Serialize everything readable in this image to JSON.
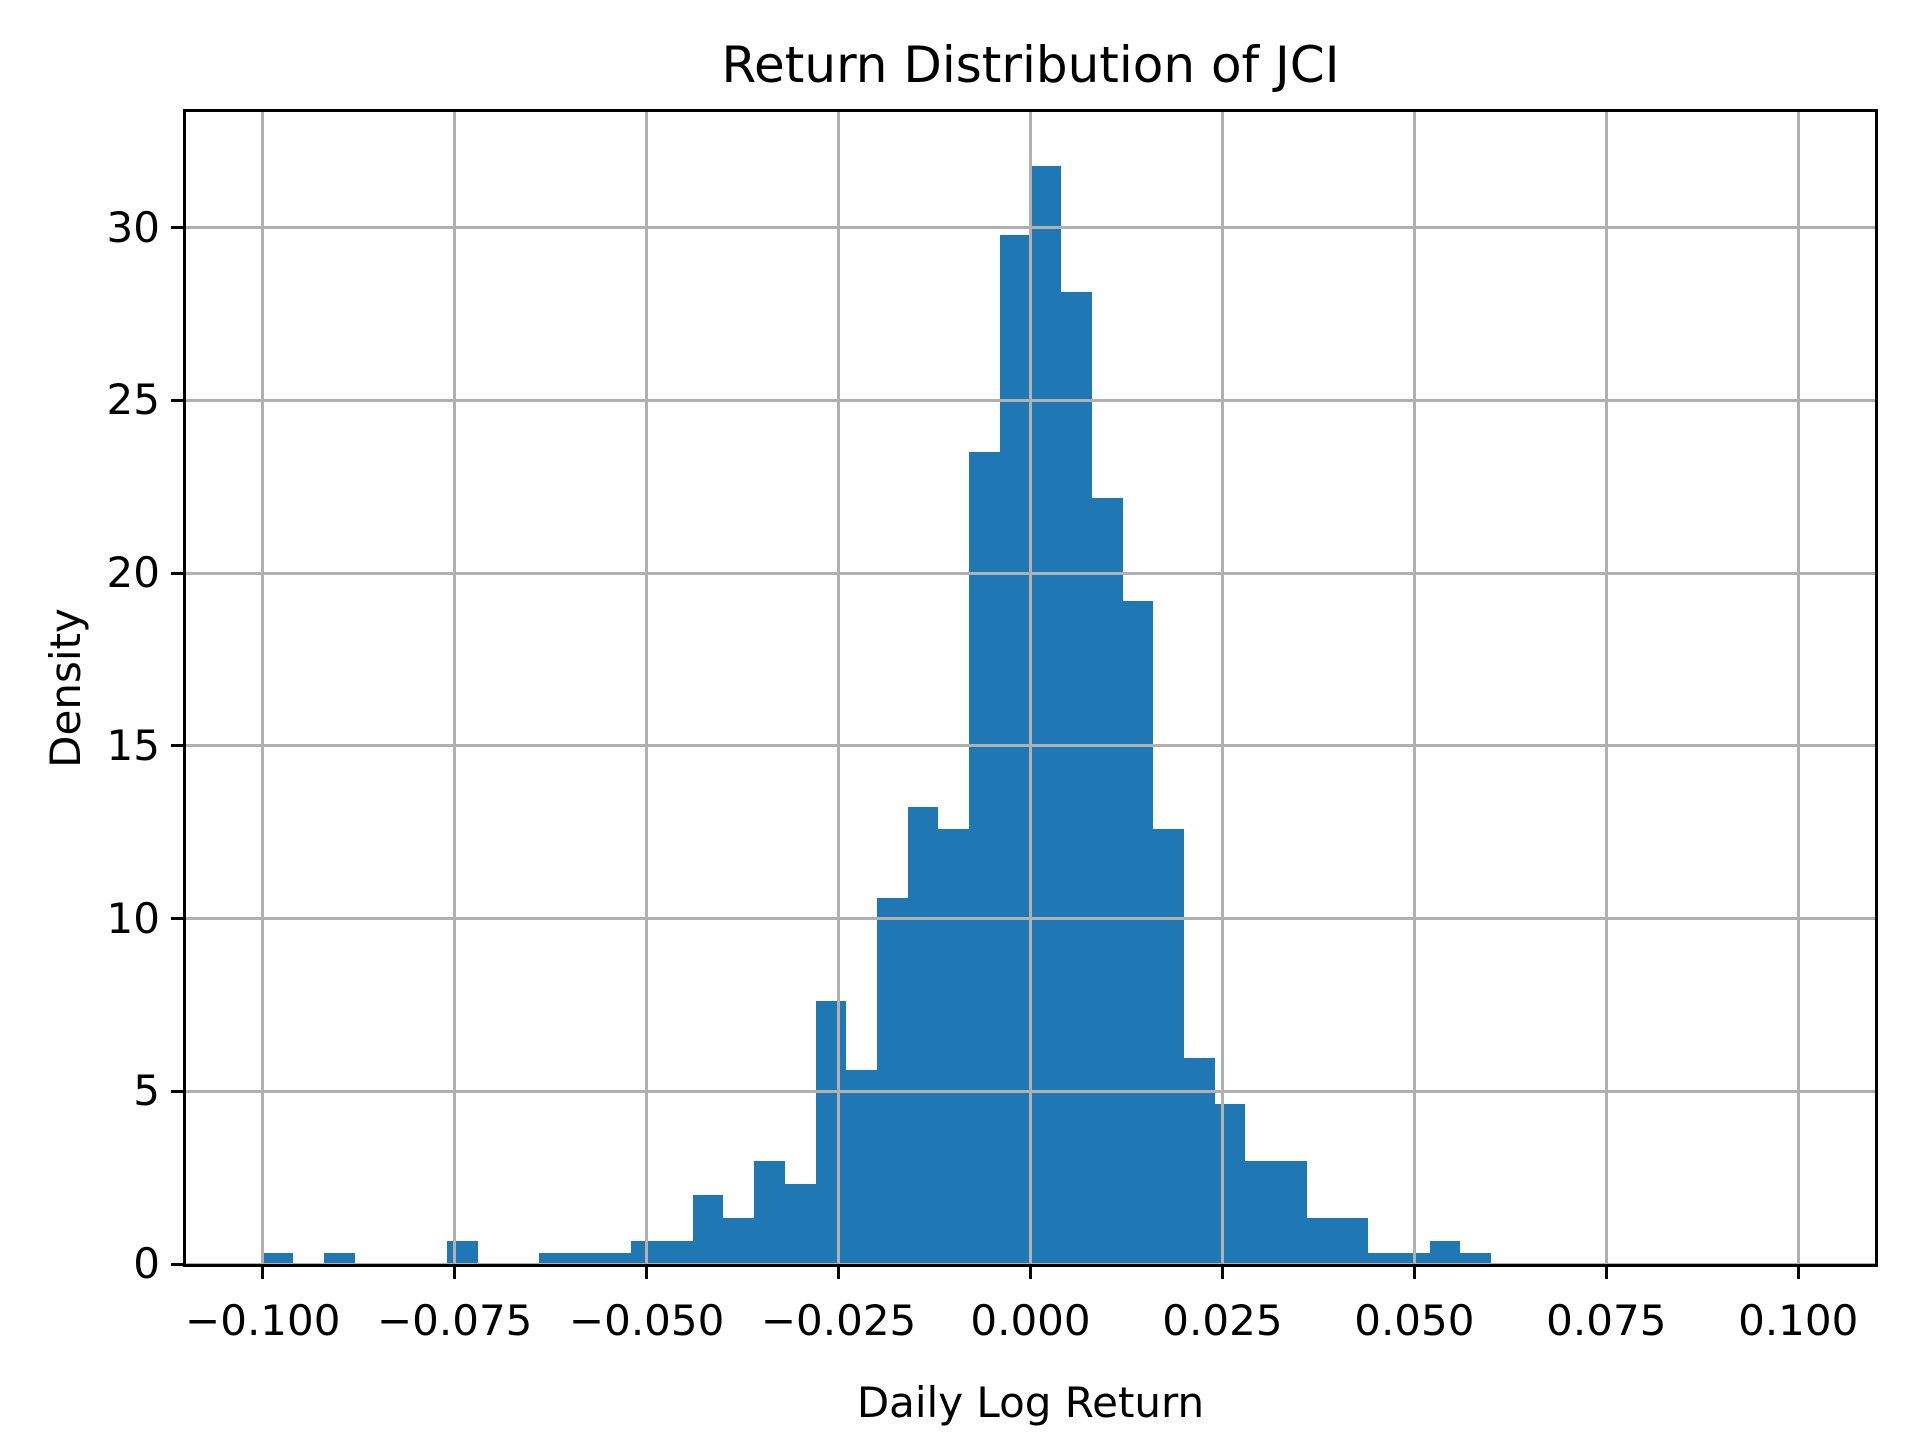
{
  "figure": {
    "background": "#ffffff"
  },
  "chart_data": {
    "type": "histogram",
    "title": "Return Distribution of JCI",
    "xlabel": "Daily Log Return",
    "ylabel": "Density",
    "bar_color": "#1f77b4",
    "grid_color": "#b0b0b0",
    "spine_color": "#000000",
    "text_color": "#000000",
    "grid": true,
    "grid_above_bars": true,
    "legend": "none",
    "xlim": [
      -0.11,
      0.11
    ],
    "ylim": [
      0,
      33.35
    ],
    "x_tick_values": [
      -0.1,
      -0.075,
      -0.05,
      -0.025,
      0.0,
      0.025,
      0.05,
      0.075,
      0.1
    ],
    "x_tick_labels": [
      "−0.100",
      "−0.075",
      "−0.050",
      "−0.025",
      "0.000",
      "0.025",
      "0.050",
      "0.075",
      "0.100"
    ],
    "y_tick_values": [
      0,
      5,
      10,
      15,
      20,
      25,
      30
    ],
    "y_tick_labels": [
      "0",
      "5",
      "10",
      "15",
      "20",
      "25",
      "30"
    ],
    "bin_start": -0.1,
    "bin_width": 0.004,
    "bin_count": 40,
    "densities": [
      0.33,
      0,
      0.33,
      0,
      0,
      0,
      0.66,
      0,
      0,
      0.33,
      0.33,
      0.33,
      0.66,
      0.66,
      1.99,
      1.32,
      2.98,
      2.32,
      7.62,
      5.63,
      10.6,
      13.24,
      12.58,
      23.51,
      29.8,
      31.79,
      28.14,
      22.18,
      19.2,
      12.58,
      5.96,
      4.64,
      2.98,
      2.98,
      1.32,
      1.32,
      0.33,
      0.33,
      0.66,
      0.33
    ]
  }
}
